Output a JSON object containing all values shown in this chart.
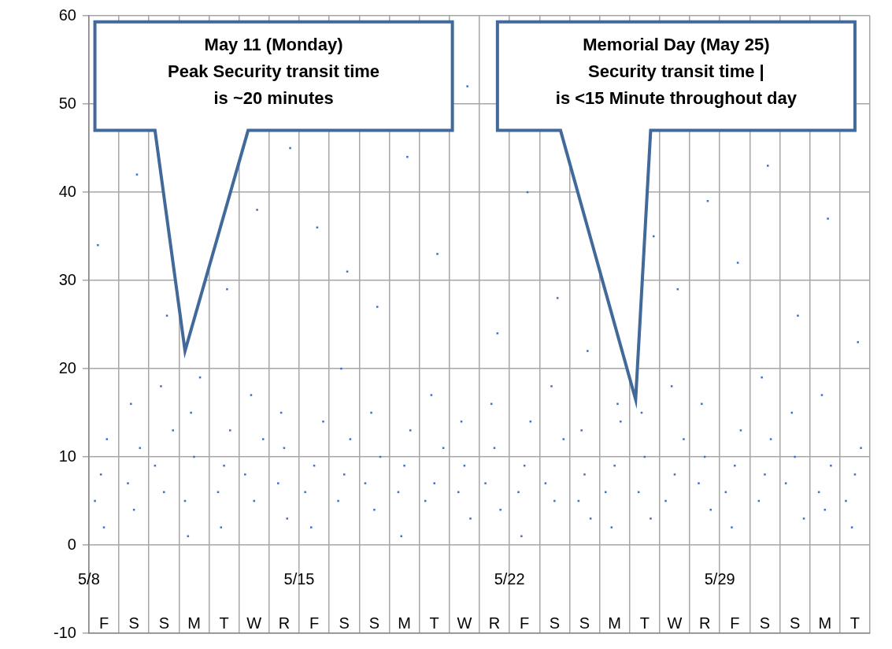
{
  "chart_data": {
    "type": "scatter",
    "marker": "square",
    "grid": true,
    "legend": false,
    "xlim": [
      "--05-08",
      "--06-03"
    ],
    "xticks": [
      {
        "value": "--05-08",
        "label": "5/8"
      },
      {
        "value": "--05-09",
        "label": null
      },
      {
        "value": "--05-10",
        "label": null
      },
      {
        "value": "--05-11",
        "label": null
      },
      {
        "value": "--05-12",
        "label": null
      },
      {
        "value": "--05-13",
        "label": null
      },
      {
        "value": "--05-14",
        "label": null
      },
      {
        "value": "--05-15",
        "label": "5/15"
      },
      {
        "value": "--05-16",
        "label": null
      },
      {
        "value": "--05-17",
        "label": null
      },
      {
        "value": "--05-18",
        "label": null
      },
      {
        "value": "--05-19",
        "label": null
      },
      {
        "value": "--05-20",
        "label": null
      },
      {
        "value": "--05-21",
        "label": null
      },
      {
        "value": "--05-22",
        "label": "5/22"
      },
      {
        "value": "--05-23",
        "label": null
      },
      {
        "value": "--05-24",
        "label": null
      },
      {
        "value": "--05-25",
        "label": null
      },
      {
        "value": "--05-26",
        "label": null
      },
      {
        "value": "--05-27",
        "label": null
      },
      {
        "value": "--05-28",
        "label": null
      },
      {
        "value": "--05-29",
        "label": "5/29"
      },
      {
        "value": "--05-30",
        "label": null
      },
      {
        "value": "--05-31",
        "label": null
      },
      {
        "value": "--06-01",
        "label": null
      },
      {
        "value": "--06-02",
        "label": null
      },
      {
        "value": "--06-03",
        "label": null
      }
    ],
    "ylim": [
      -10,
      60
    ],
    "yticks": [
      -10,
      0,
      10,
      20,
      30,
      40,
      50,
      60
    ],
    "series": [
      {
        "color": "#4472c4",
        "x": [
          "--05-08T04:48",
          "--05-08T09:36",
          "--05-08T14:24",
          "--05-08T12:00",
          "--05-08T07:12",
          "--05-09T07:12",
          "--05-09T12:00",
          "--05-09T16:48",
          "--05-09T09:36",
          "--05-09T14:24",
          "--05-10T04:48",
          "--05-10T12:00",
          "--05-10T19:12",
          "--05-10T09:36",
          "--05-10T14:24",
          "--05-11T04:48",
          "--05-11T12:00",
          "--05-11T09:36",
          "--05-11T16:48",
          "--05-11T07:12",
          "--05-12T07:12",
          "--05-12T12:00",
          "--05-12T16:48",
          "--05-12T09:36",
          "--05-12T14:24",
          "--05-13T04:48",
          "--05-13T12:00",
          "--05-13T19:12",
          "--05-13T09:36",
          "--05-13T14:24",
          "--05-14T07:12",
          "--05-14T12:00",
          "--05-14T14:24",
          "--05-14T09:36",
          "--05-14T16:48",
          "--05-15T04:48",
          "--05-15T12:00",
          "--05-15T19:12",
          "--05-15T09:36",
          "--05-15T14:24",
          "--05-16T07:12",
          "--05-16T12:00",
          "--05-16T16:48",
          "--05-16T09:36",
          "--05-16T14:24",
          "--05-17T04:48",
          "--05-17T12:00",
          "--05-17T16:48",
          "--05-17T09:36",
          "--05-17T14:24",
          "--05-18T07:12",
          "--05-18T12:00",
          "--05-18T16:48",
          "--05-18T09:36",
          "--05-18T14:24",
          "--05-19T04:48",
          "--05-19T12:00",
          "--05-19T19:12",
          "--05-19T09:36",
          "--05-19T14:24",
          "--05-20T07:12",
          "--05-20T12:00",
          "--05-20T16:48",
          "--05-20T09:36",
          "--05-20T14:24",
          "--05-21T04:48",
          "--05-21T12:00",
          "--05-21T16:48",
          "--05-21T09:36",
          "--05-21T14:24",
          "--05-22T07:12",
          "--05-22T12:00",
          "--05-22T16:48",
          "--05-22T09:36",
          "--05-22T14:24",
          "--05-23T04:48",
          "--05-23T12:00",
          "--05-23T19:12",
          "--05-23T09:36",
          "--05-23T14:24",
          "--05-24T07:12",
          "--05-24T12:00",
          "--05-24T16:48",
          "--05-24T09:36",
          "--05-24T14:24",
          "--05-25T04:48",
          "--05-25T12:00",
          "--05-25T16:48",
          "--05-25T09:36",
          "--05-25T14:24",
          "--05-26T07:12",
          "--05-26T12:00",
          "--05-26T16:48",
          "--05-26T09:36",
          "--05-26T19:12",
          "--05-27T04:48",
          "--05-27T12:00",
          "--05-27T19:12",
          "--05-27T09:36",
          "--05-27T14:24",
          "--05-28T07:12",
          "--05-28T12:00",
          "--05-28T16:48",
          "--05-28T09:36",
          "--05-28T14:24",
          "--05-29T04:48",
          "--05-29T12:00",
          "--05-29T16:48",
          "--05-29T09:36",
          "--05-29T14:24",
          "--05-30T07:12",
          "--05-30T12:00",
          "--05-30T16:48",
          "--05-30T09:36",
          "--05-30T14:24",
          "--05-31T04:48",
          "--05-31T12:00",
          "--05-31T19:12",
          "--05-31T09:36",
          "--05-31T14:24",
          "--06-01T07:12",
          "--06-01T12:00",
          "--06-01T16:48",
          "--06-01T09:36",
          "--06-01T14:24",
          "--06-02T04:48",
          "--06-02T12:00",
          "--06-02T16:48",
          "--06-02T09:36",
          "--06-02T14:24"
        ],
        "values": [
          5,
          8,
          12,
          2,
          34,
          7,
          4,
          11,
          16,
          42,
          9,
          6,
          13,
          18,
          26,
          5,
          10,
          15,
          19,
          1,
          6,
          9,
          13,
          2,
          29,
          8,
          5,
          12,
          17,
          38,
          7,
          11,
          3,
          15,
          45,
          6,
          9,
          14,
          2,
          36,
          5,
          8,
          12,
          20,
          31,
          7,
          4,
          10,
          15,
          27,
          6,
          9,
          13,
          1,
          44,
          5,
          7,
          11,
          17,
          33,
          6,
          9,
          3,
          14,
          52,
          7,
          11,
          4,
          16,
          24,
          6,
          9,
          14,
          1,
          40,
          7,
          5,
          12,
          18,
          28,
          5,
          8,
          3,
          13,
          22,
          6,
          9,
          14,
          2,
          16,
          6,
          10,
          3,
          15,
          35,
          5,
          8,
          12,
          18,
          29,
          7,
          10,
          4,
          16,
          39,
          6,
          9,
          13,
          2,
          32,
          5,
          8,
          12,
          19,
          43,
          7,
          10,
          3,
          15,
          26,
          6,
          4,
          9,
          17,
          37,
          5,
          8,
          11,
          2,
          23
        ]
      }
    ],
    "annotations": [
      "May 11 (Monday)\nPeak Security transit time\nis ~20 minutes",
      "Memorial Day (May 25)\nSecurity transit time |\nis <15 Minute throughout day",
      "F",
      "S",
      "S",
      "M",
      "T",
      "W",
      "R",
      "F",
      "S",
      "S",
      "M",
      "T",
      "W",
      "R",
      "F",
      "S",
      "S",
      "M",
      "T",
      "W",
      "R",
      "F",
      "S",
      "S",
      "M",
      "T"
    ]
  }
}
